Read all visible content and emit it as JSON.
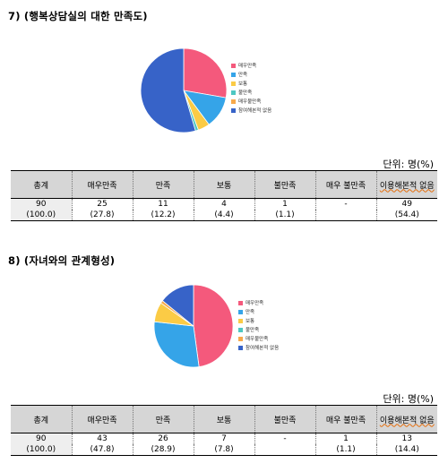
{
  "q7": {
    "title": "7) (행복상담실의  대한  만족도)",
    "legend": [
      "매우만족",
      "만족",
      "보통",
      "불만족",
      "매우불만족",
      "참여해본적 없음"
    ],
    "unit": "단위:  명(%)",
    "headers": [
      "총계",
      "매우만족",
      "만족",
      "보통",
      "불만족",
      "매우 불만족",
      "이용해본적 없음"
    ],
    "counts": [
      "90",
      "25",
      "11",
      "4",
      "1",
      "-",
      "49"
    ],
    "percents": [
      "(100.0)",
      "(27.8)",
      "(12.2)",
      "(4.4)",
      "(1.1)",
      "",
      "(54.4)"
    ]
  },
  "q8": {
    "title": "8) (자녀와의  관계형성)",
    "legend": [
      "매우만족",
      "만족",
      "보통",
      "불만족",
      "매우불만족",
      "참여해본적 없음"
    ],
    "unit": "단위:  명(%)",
    "headers": [
      "총계",
      "매우만족",
      "만족",
      "보통",
      "불만족",
      "매우 불만족",
      "이용해본적 없음"
    ],
    "counts": [
      "90",
      "43",
      "26",
      "7",
      "-",
      "1",
      "13"
    ],
    "percents": [
      "(100.0)",
      "(47.8)",
      "(28.9)",
      "(7.8)",
      "",
      "(1.1)",
      "(14.4)"
    ]
  },
  "colors": [
    "#f4597c",
    "#35a4e8",
    "#fbcb45",
    "#4ec7c2",
    "#f7a94a",
    "#3763c8"
  ],
  "chart_data": [
    {
      "type": "pie",
      "categories": [
        "매우만족",
        "만족",
        "보통",
        "불만족",
        "매우불만족",
        "참여해본적 없음"
      ],
      "values": [
        25,
        11,
        4,
        1,
        0,
        49
      ],
      "legend_position": "right"
    },
    {
      "type": "pie",
      "categories": [
        "매우만족",
        "만족",
        "보통",
        "불만족",
        "매우불만족",
        "참여해본적 없음"
      ],
      "values": [
        43,
        26,
        7,
        0,
        1,
        13
      ],
      "legend_position": "right"
    }
  ]
}
